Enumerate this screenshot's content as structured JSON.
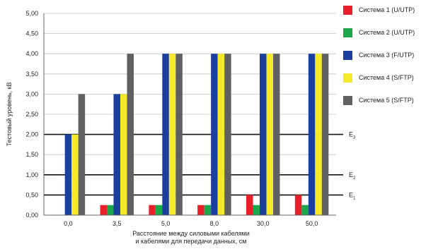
{
  "chart_data": {
    "type": "bar",
    "categories": [
      "0,0",
      "3,5",
      "5,0",
      "8,0",
      "30,0",
      "50,0"
    ],
    "series": [
      {
        "name": "Система 1 (U/UTP)",
        "color": "#e8202a",
        "values": [
          0,
          0.25,
          0.25,
          0.25,
          0.5,
          0.5
        ]
      },
      {
        "name": "Система 2 (U/UTP)",
        "color": "#1aa84b",
        "values": [
          0,
          0.25,
          0.25,
          0.25,
          0.25,
          0.25
        ]
      },
      {
        "name": "Система 3 (F/UTP)",
        "color": "#1b3f9e",
        "values": [
          2,
          3,
          4,
          4,
          4,
          4
        ]
      },
      {
        "name": "Система 4 (S/FTP)",
        "color": "#f4ea2a",
        "values": [
          2,
          3,
          4,
          4,
          4,
          4
        ]
      },
      {
        "name": "Система 5 (S/FTP)",
        "color": "#5e6062",
        "values": [
          3,
          4,
          4,
          4,
          4,
          4
        ]
      }
    ],
    "ylabel": "Тестовый уровень, кВ",
    "xlabel_line1": "Расстояние между силовыми кабелями",
    "xlabel_line2": "и кабелями для передачи данных, см",
    "ylim": [
      0,
      5
    ],
    "yticks": [
      "0,00",
      "0,50",
      "1,00",
      "1,50",
      "2,00",
      "2,50",
      "3,00",
      "3,50",
      "4,00",
      "4,50",
      "5,00"
    ],
    "grid": true,
    "legend_position": "right",
    "reference_levels": [
      {
        "value": 0.5,
        "label": "E",
        "sub": "1"
      },
      {
        "value": 1.0,
        "label": "E",
        "sub": "2"
      },
      {
        "value": 2.0,
        "label": "E",
        "sub": "3"
      }
    ]
  }
}
